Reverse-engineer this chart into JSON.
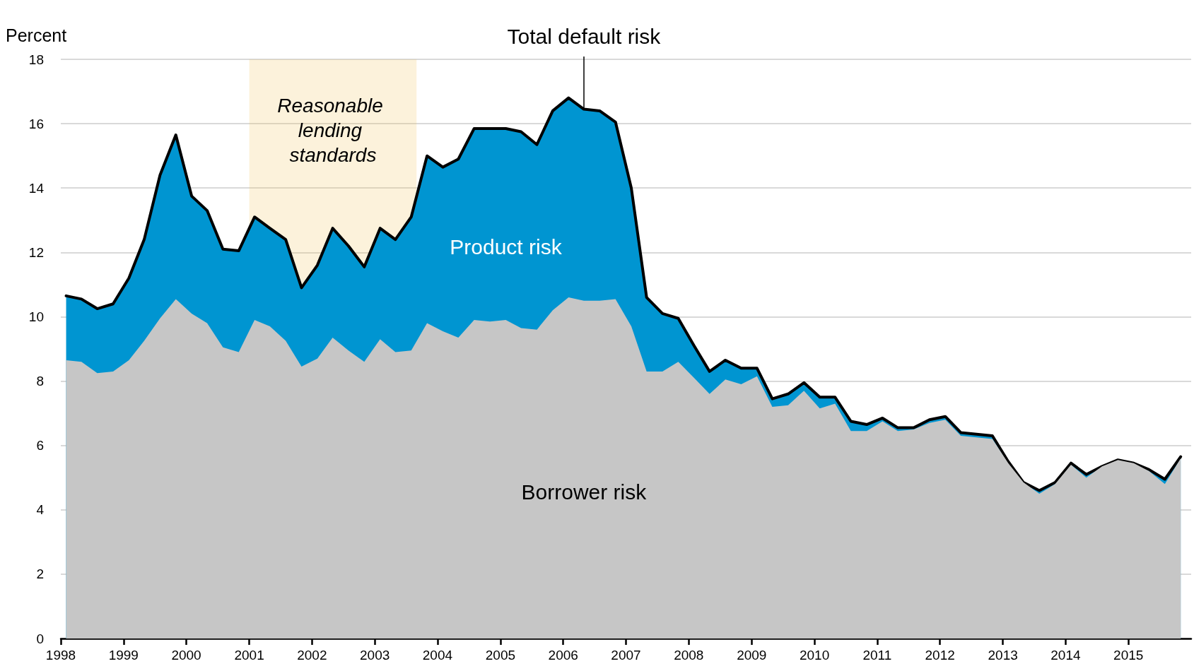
{
  "chart_data": {
    "type": "area",
    "annotations": [
      {
        "text": "Total default risk",
        "x": "2006-05",
        "y": 16.45
      }
    ],
    "ylabel": "Percent",
    "stacked": true,
    "grid": "y",
    "marker": "none",
    "line_style": "solid",
    "x": [
      "1998-02",
      "1998-05",
      "1998-08",
      "1998-11",
      "1999-02",
      "1999-05",
      "1999-08",
      "1999-11",
      "2000-02",
      "2000-05",
      "2000-08",
      "2000-11",
      "2001-02",
      "2001-05",
      "2001-08",
      "2001-11",
      "2002-02",
      "2002-05",
      "2002-08",
      "2002-11",
      "2003-02",
      "2003-05",
      "2003-08",
      "2003-11",
      "2004-02",
      "2004-05",
      "2004-08",
      "2004-11",
      "2005-02",
      "2005-05",
      "2005-08",
      "2005-11",
      "2006-02",
      "2006-05",
      "2006-08",
      "2006-11",
      "2007-02",
      "2007-05",
      "2007-08",
      "2007-11",
      "2008-02",
      "2008-05",
      "2008-08",
      "2008-11",
      "2009-02",
      "2009-05",
      "2009-08",
      "2009-11",
      "2010-02",
      "2010-05",
      "2010-08",
      "2010-11",
      "2011-02",
      "2011-05",
      "2011-08",
      "2011-11",
      "2012-02",
      "2012-05",
      "2012-08",
      "2012-11",
      "2013-02",
      "2013-05",
      "2013-08",
      "2013-11",
      "2014-02",
      "2014-05",
      "2014-08",
      "2014-11",
      "2015-02",
      "2015-05",
      "2015-08",
      "2015-11"
    ],
    "xlim": [
      "1998-01-01",
      "2016-01-01"
    ],
    "xticks": [
      "1998",
      "1999",
      "2000",
      "2001",
      "2002",
      "2003",
      "2004",
      "2005",
      "2006",
      "2007",
      "2008",
      "2009",
      "2010",
      "2011",
      "2012",
      "2013",
      "2014",
      "2015"
    ],
    "ylim": [
      0,
      18
    ],
    "yticks": [
      0,
      2,
      4,
      6,
      8,
      10,
      12,
      14,
      16,
      18
    ],
    "series": [
      {
        "name": "Borrower risk",
        "color": "#c6c6c6",
        "values": [
          8.65,
          8.6,
          8.25,
          8.3,
          8.65,
          9.25,
          9.95,
          10.55,
          10.1,
          9.8,
          9.05,
          8.9,
          9.9,
          9.7,
          9.25,
          8.45,
          8.7,
          9.35,
          8.95,
          8.6,
          9.3,
          8.9,
          8.95,
          9.8,
          9.55,
          9.35,
          9.9,
          9.85,
          9.9,
          9.65,
          9.6,
          10.2,
          10.6,
          10.5,
          10.5,
          10.55,
          9.7,
          8.3,
          8.3,
          8.6,
          8.1,
          7.6,
          8.05,
          7.9,
          8.15,
          7.2,
          7.25,
          7.7,
          7.15,
          7.3,
          6.45,
          6.45,
          6.75,
          6.45,
          6.5,
          6.7,
          6.8,
          6.3,
          6.25,
          6.2,
          5.45,
          4.85,
          4.5,
          4.8,
          5.4,
          5.0,
          5.35,
          5.55,
          5.45,
          5.2,
          4.8,
          5.6
        ]
      },
      {
        "name": "Product risk",
        "color": "#0095d1",
        "values": [
          2.0,
          1.95,
          2.0,
          2.1,
          2.55,
          3.15,
          4.45,
          5.1,
          3.65,
          3.5,
          3.05,
          3.15,
          3.2,
          3.05,
          3.15,
          2.45,
          2.9,
          3.4,
          3.25,
          2.95,
          3.45,
          3.5,
          4.15,
          5.2,
          5.1,
          5.55,
          5.95,
          6.0,
          5.95,
          6.1,
          5.75,
          6.2,
          6.2,
          5.95,
          5.9,
          5.5,
          4.3,
          2.3,
          1.8,
          1.35,
          1.0,
          0.7,
          0.6,
          0.5,
          0.25,
          0.25,
          0.35,
          0.25,
          0.35,
          0.2,
          0.3,
          0.2,
          0.1,
          0.1,
          0.05,
          0.1,
          0.1,
          0.1,
          0.1,
          0.1,
          0.05,
          0.0,
          0.1,
          0.05,
          0.05,
          0.1,
          0.0,
          0.0,
          0.0,
          0.05,
          0.15,
          0.05
        ]
      }
    ],
    "bands": [
      {
        "axis": "x",
        "from": "2001-01",
        "to": "2003-09",
        "label": "Reasonable lending standards",
        "color": "#f2c45a"
      }
    ]
  }
}
